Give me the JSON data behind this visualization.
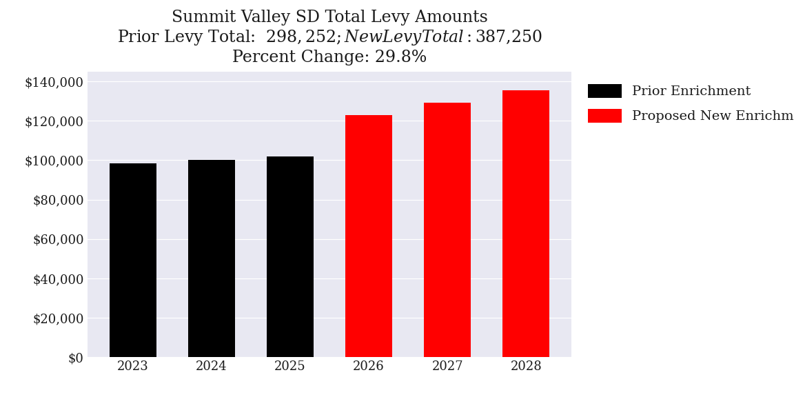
{
  "title_line1": "Summit Valley SD Total Levy Amounts",
  "title_line2": "Prior Levy Total:  $298,252; New Levy Total: $387,250",
  "title_line3": "Percent Change: 29.8%",
  "categories": [
    "2023",
    "2024",
    "2025",
    "2026",
    "2027",
    "2028"
  ],
  "values": [
    98252,
    100000,
    102000,
    123000,
    129250,
    135500
  ],
  "bar_colors": [
    "#000000",
    "#000000",
    "#000000",
    "#ff0000",
    "#ff0000",
    "#ff0000"
  ],
  "legend_labels": [
    "Prior Enrichment",
    "Proposed New Enrichment"
  ],
  "legend_colors": [
    "#000000",
    "#ff0000"
  ],
  "ylim": [
    0,
    145000
  ],
  "ytick_step": 20000,
  "plot_bg_color": "#e8e8f2",
  "fig_bg_color": "#ffffff",
  "title_fontsize": 17,
  "tick_fontsize": 13,
  "legend_fontsize": 14
}
